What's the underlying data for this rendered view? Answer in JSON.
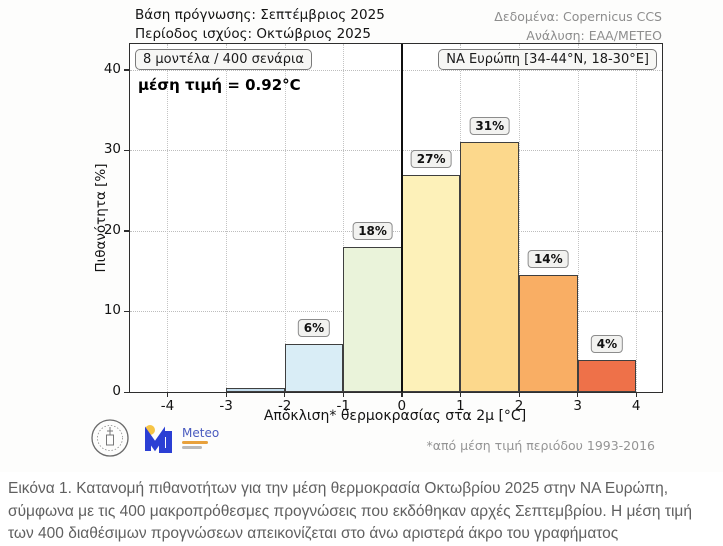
{
  "header": {
    "forecast_base": "Βάση πρόγνωσης: Σεπτέμβριος 2025",
    "valid_period": "Περίοδος ισχύος: Οκτώβριος 2025",
    "data_source": "Δεδομένα: Copernicus CCS",
    "analysis": "Ανάλυση: ΕΑΑ/ΜΕΤΕΟ"
  },
  "chart_data": {
    "type": "bar",
    "title": "",
    "xlabel": "Απόκλιση* θερμοκρασίας στα 2μ [°C]",
    "ylabel": "Πιθανότητα [%]",
    "bins": [
      [
        -3,
        -2
      ],
      [
        -2,
        -1
      ],
      [
        -1,
        0
      ],
      [
        0,
        1
      ],
      [
        1,
        2
      ],
      [
        2,
        3
      ],
      [
        3,
        4
      ]
    ],
    "values": [
      0.5,
      6,
      18,
      27,
      31,
      14.5,
      4
    ],
    "bar_labels": [
      "",
      "6%",
      "18%",
      "27%",
      "31%",
      "14%",
      "4%"
    ],
    "bar_colors": [
      "#c3dcec",
      "#d9edf6",
      "#eaf3da",
      "#fdf1b9",
      "#fcd88c",
      "#f9ae64",
      "#ee7149"
    ],
    "bar_edge_color": "#3f3f3f",
    "x_ticks": [
      -4,
      -3,
      -2,
      -1,
      0,
      1,
      2,
      3,
      4
    ],
    "y_ticks": [
      0,
      10,
      20,
      30,
      40
    ],
    "xlim": [
      -4.64,
      4.44
    ],
    "ylim": [
      0,
      43.2
    ],
    "grid": "dotted",
    "legend": "none",
    "zero_line_x": 0,
    "annotations": {
      "models": "8 μοντέλα / 400 σενάρια",
      "mean": "μέση τιμή = 0.92°C",
      "region": "ΝΑ Ευρώπη [34-44°N, 18-30°E]"
    },
    "footnote": "*από μέση τιμή περιόδου 1993-2016"
  },
  "logos": {
    "meteo": "Meteo"
  },
  "caption": "Εικόνα 1. Κατανομή πιθανοτήτων για την μέση θερμοκρασία Οκτωβρίου 2025 στην ΝΑ Ευρώπη, σύμφωνα με τις 400 μακροπρόθεσμες προγνώσεις που εκδόθηκαν αρχές Σεπτεμβρίου. Η μέση τιμή των 400 διαθέσιμων προγνώσεων απεικονίζεται στο άνω αριστερά άκρο του γραφήματος"
}
